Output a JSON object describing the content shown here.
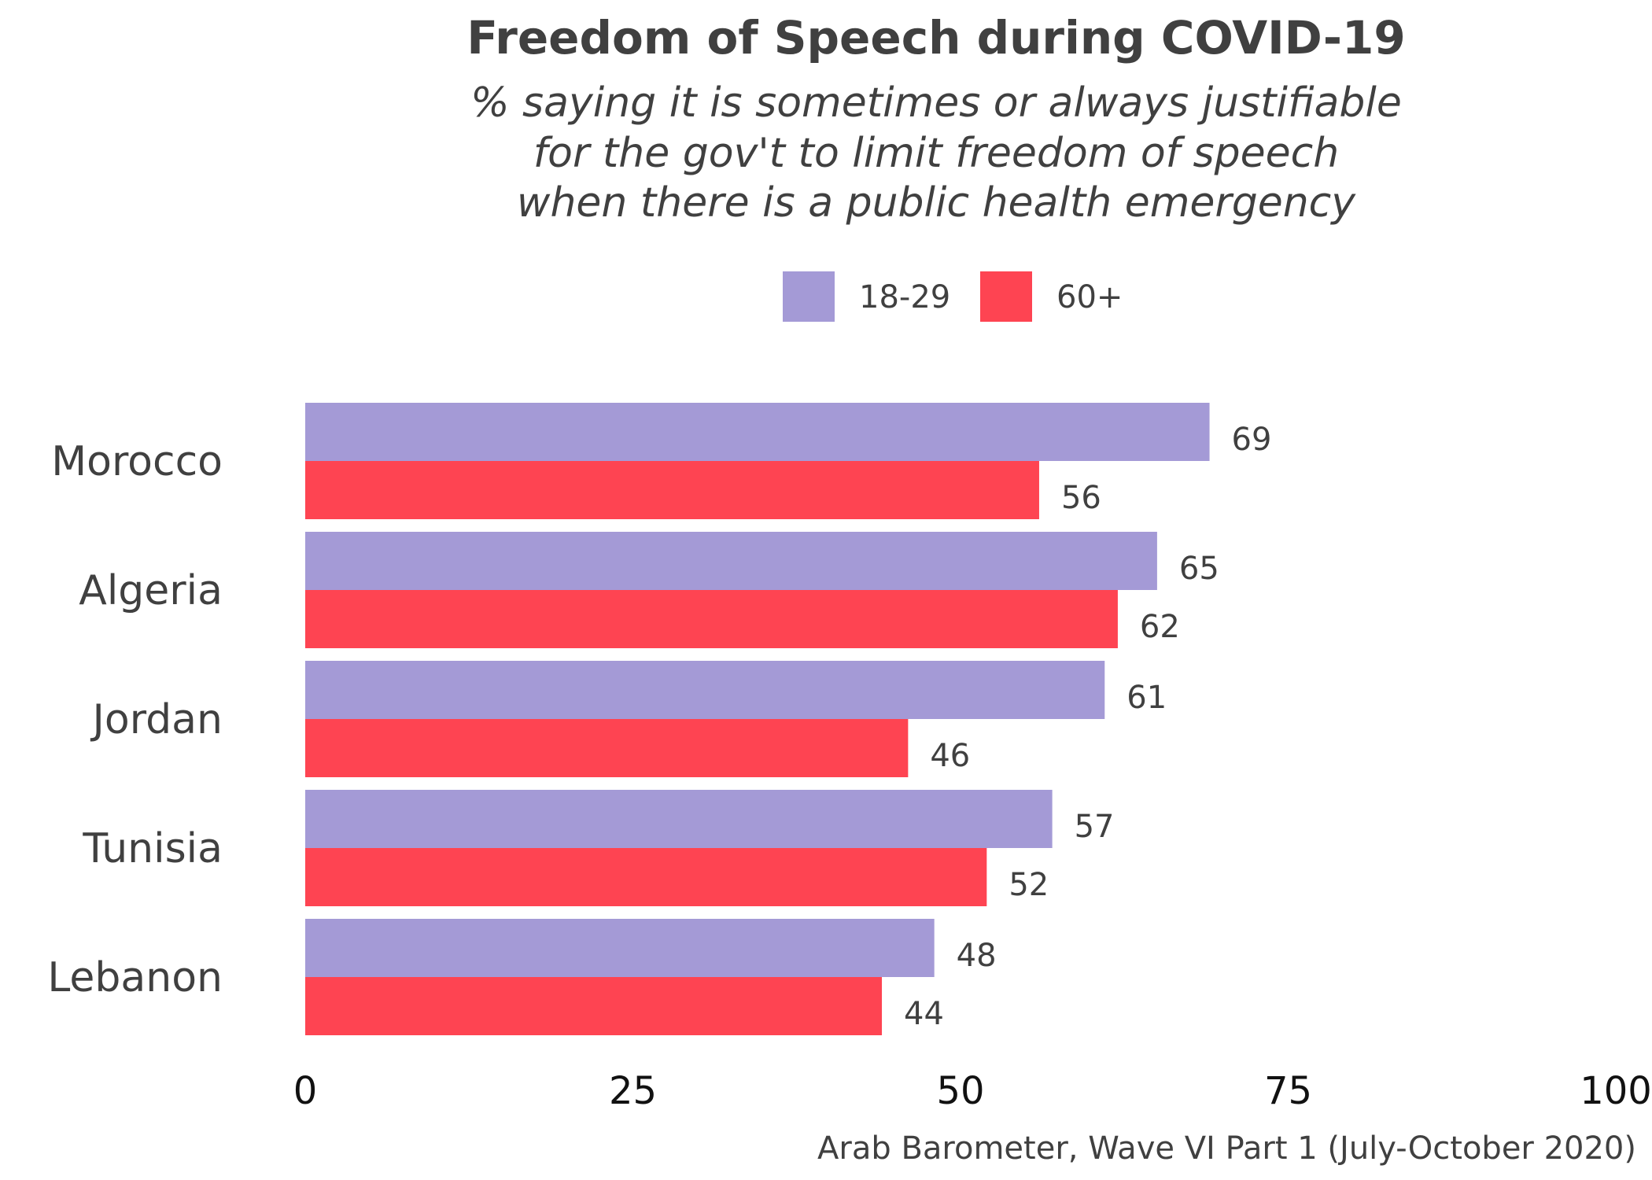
{
  "chart_data": {
    "type": "bar",
    "orientation": "horizontal",
    "title": "Freedom of Speech during COVID-19",
    "subtitle_lines": [
      "% saying it is sometimes or always justifiable",
      "for the gov't to limit freedom of speech",
      "when there is a public health emergency"
    ],
    "categories": [
      "Morocco",
      "Algeria",
      "Jordan",
      "Tunisia",
      "Lebanon"
    ],
    "series": [
      {
        "name": "18-29",
        "color": "#a49ad6",
        "values": [
          69,
          65,
          61,
          57,
          48
        ]
      },
      {
        "name": "60+",
        "color": "#fe4452",
        "values": [
          56,
          62,
          46,
          52,
          44
        ]
      }
    ],
    "xlim": [
      0,
      100
    ],
    "xticks": [
      "0",
      "25",
      "50",
      "75",
      "100"
    ],
    "xlabel": "",
    "ylabel": "",
    "grid": false,
    "legend_position": "top",
    "data_labels": true,
    "caption": "Arab Barometer, Wave VI Part 1 (July-October 2020)"
  }
}
